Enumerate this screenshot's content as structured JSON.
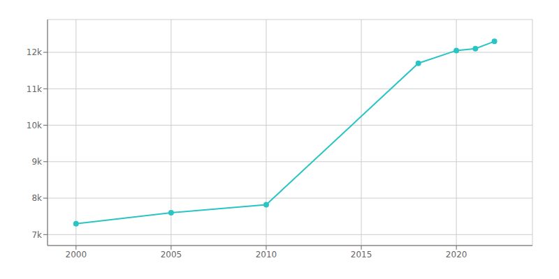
{
  "chart_data": {
    "type": "line",
    "x": [
      2000,
      2005,
      2010,
      2018,
      2020,
      2021,
      2022
    ],
    "values": [
      7300,
      7600,
      7820,
      11700,
      12050,
      12100,
      12300
    ],
    "color": "#2ac4c4",
    "marker": "circle",
    "xlim": [
      1998.5,
      2024
    ],
    "xticks": [
      2000,
      2005,
      2010,
      2015,
      2020
    ],
    "ylim": [
      6700,
      12900
    ],
    "yticks": [
      {
        "value": 7000,
        "label": "7k"
      },
      {
        "value": 8000,
        "label": "8k"
      },
      {
        "value": 9000,
        "label": "9k"
      },
      {
        "value": 10000,
        "label": "10k"
      },
      {
        "value": 11000,
        "label": "11k"
      },
      {
        "value": 12000,
        "label": "12k"
      }
    ],
    "grid": true
  }
}
